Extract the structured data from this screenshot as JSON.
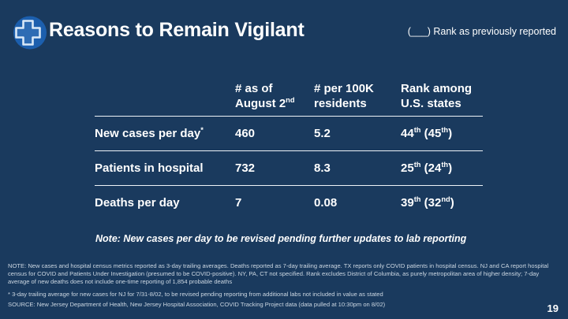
{
  "slide": {
    "background_color": "#1a3a5e",
    "page_number": "19"
  },
  "header": {
    "title": "Reasons to Remain Vigilant",
    "legend": "(___) Rank as previously reported",
    "logo_icon": "medical-cross-icon",
    "logo_colors": {
      "circle": "#1c5fae",
      "cross_fill": "#2e6cb4",
      "cross_outline": "#d9e8f7"
    }
  },
  "table": {
    "columns": [
      {
        "line1": "# as of",
        "line2_segments": [
          {
            "t": "August 2"
          },
          {
            "t": "nd",
            "sup": true
          }
        ]
      },
      {
        "line1": "# per 100K",
        "line2_segments": [
          {
            "t": "residents"
          }
        ]
      },
      {
        "line1": "Rank among",
        "line2_segments": [
          {
            "t": "U.S. states"
          }
        ]
      }
    ],
    "rows": [
      {
        "label_segments": [
          {
            "t": "New cases per day"
          },
          {
            "t": "*",
            "sup": true
          }
        ],
        "as_of": "460",
        "per_100k": "5.2",
        "rank_segments": [
          {
            "t": "44"
          },
          {
            "t": "th",
            "sup": true
          },
          {
            "t": " ("
          },
          {
            "t": "45"
          },
          {
            "t": "th",
            "sup": true
          },
          {
            "t": ")"
          }
        ]
      },
      {
        "label_segments": [
          {
            "t": "Patients in hospital"
          }
        ],
        "as_of": "732",
        "per_100k": "8.3",
        "rank_segments": [
          {
            "t": "25"
          },
          {
            "t": "th",
            "sup": true
          },
          {
            "t": " ("
          },
          {
            "t": "24"
          },
          {
            "t": "th",
            "sup": true
          },
          {
            "t": ")"
          }
        ]
      },
      {
        "label_segments": [
          {
            "t": "Deaths per day"
          }
        ],
        "as_of": "7",
        "per_100k": "0.08",
        "rank_segments": [
          {
            "t": "39"
          },
          {
            "t": "th",
            "sup": true
          },
          {
            "t": " ("
          },
          {
            "t": "32"
          },
          {
            "t": "nd",
            "sup": true
          },
          {
            "t": ")"
          }
        ]
      }
    ]
  },
  "note": "Note: New cases per day to be revised pending further updates to lab reporting",
  "footnotes": {
    "note": "NOTE:  New cases and hospital census metrics reported as 3-day trailing averages.  Deaths reported as 7-day trailing average. TX reports only COVID patients in hospital census. NJ and CA report hospital census for COVID and Patients Under Investigation (presumed to be COVID-positive). NY, PA, CT not specified.  Rank excludes District of Columbia, as purely metropolitan area of higher density; 7-day average of new deaths does not include one-time reporting of 1,854 probable deaths",
    "asterisk": "* 3-day trailing average for new cases for NJ for 7/31-8/02, to be revised pending reporting from additional labs not included in value as stated",
    "source": "SOURCE: New Jersey Department of Health, New Jersey Hospital Association, COVID Tracking Project data (data pulled at 10:30pm on 8/02)"
  }
}
